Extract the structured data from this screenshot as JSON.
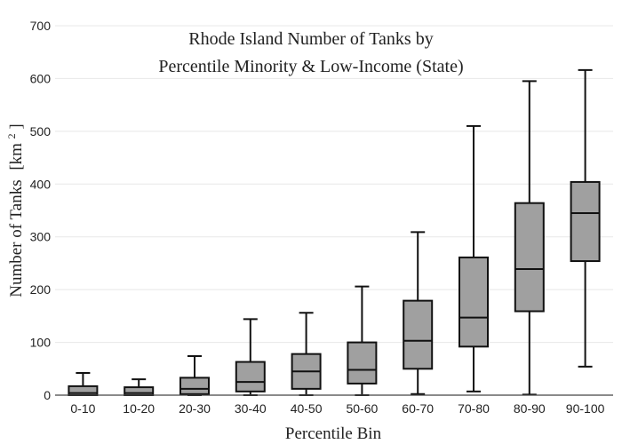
{
  "chart_data": {
    "type": "box",
    "title_lines": [
      "Rhode Island Number of Tanks by",
      "Percentile Minority & Low-Income (State)"
    ],
    "xlabel": "Percentile Bin",
    "ylabel": "Number of Tanks",
    "ylabel_unit_base": "[km",
    "ylabel_unit_sup": "2",
    "ylabel_unit_end": "]",
    "ylim": [
      0,
      700
    ],
    "yticks": [
      0,
      100,
      200,
      300,
      400,
      500,
      600,
      700
    ],
    "grid": true,
    "legend": "none",
    "box_color": "#a0a0a0",
    "categories": [
      "0-10",
      "10-20",
      "20-30",
      "30-40",
      "40-50",
      "50-60",
      "60-70",
      "70-80",
      "80-90",
      "90-100"
    ],
    "boxes": [
      {
        "category": "0-10",
        "min": 0,
        "q1": 0,
        "median": 4,
        "q3": 17,
        "max": 42
      },
      {
        "category": "10-20",
        "min": 0,
        "q1": 0,
        "median": 4,
        "q3": 15,
        "max": 30
      },
      {
        "category": "20-30",
        "min": 0,
        "q1": 2,
        "median": 12,
        "q3": 33,
        "max": 74
      },
      {
        "category": "30-40",
        "min": 0,
        "q1": 7,
        "median": 25,
        "q3": 63,
        "max": 144
      },
      {
        "category": "40-50",
        "min": 0,
        "q1": 12,
        "median": 45,
        "q3": 78,
        "max": 156
      },
      {
        "category": "50-60",
        "min": 0,
        "q1": 22,
        "median": 48,
        "q3": 100,
        "max": 206
      },
      {
        "category": "60-70",
        "min": 2,
        "q1": 50,
        "median": 103,
        "q3": 179,
        "max": 309
      },
      {
        "category": "70-80",
        "min": 7,
        "q1": 92,
        "median": 147,
        "q3": 261,
        "max": 510
      },
      {
        "category": "80-90",
        "min": 1,
        "q1": 159,
        "median": 239,
        "q3": 364,
        "max": 595
      },
      {
        "category": "90-100",
        "min": 54,
        "q1": 254,
        "median": 345,
        "q3": 404,
        "max": 616
      }
    ]
  }
}
